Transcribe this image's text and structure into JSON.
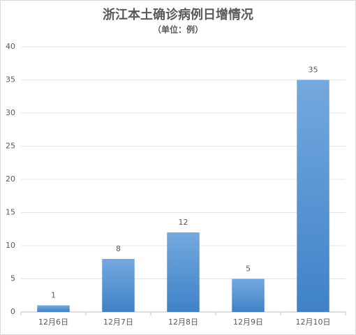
{
  "chart_data": {
    "type": "bar",
    "title": "浙江本土确诊病例日增情况",
    "subtitle": "（单位：例）",
    "categories": [
      "12月6日",
      "12月7日",
      "12月8日",
      "12月9日",
      "12月10日"
    ],
    "values": [
      1,
      8,
      12,
      5,
      35
    ],
    "color": "#4a8fd6",
    "ylim": [
      0,
      40
    ],
    "yticks": [
      0,
      5,
      10,
      15,
      20,
      25,
      30,
      35,
      40
    ],
    "grid": true
  }
}
